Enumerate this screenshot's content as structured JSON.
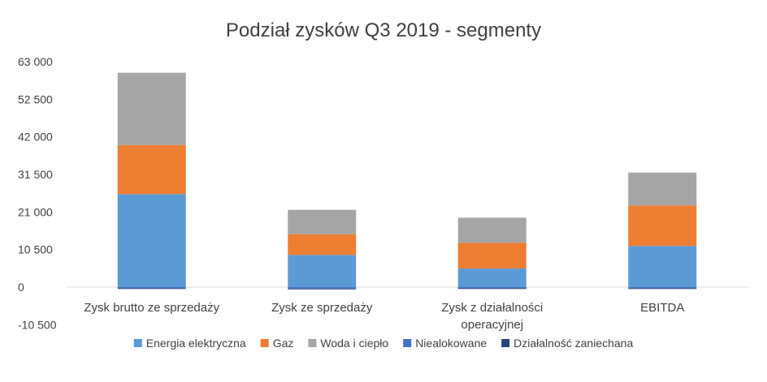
{
  "chart_data": {
    "type": "bar",
    "stacked": true,
    "title": "Podział zysków Q3 2019 - segmenty",
    "categories": [
      [
        "Zysk brutto ze sprzedaży"
      ],
      [
        "Zysk ze sprzedaży"
      ],
      [
        "Zysk z działalności",
        "operacyjnej"
      ],
      [
        "EBITDA"
      ]
    ],
    "yticks": [
      "63 000",
      "52 500",
      "42 000",
      "31 500",
      "21 000",
      "10 500",
      "0",
      "-10 500"
    ],
    "ylim": [
      -10500,
      63000
    ],
    "legend_position": "bottom",
    "series": [
      {
        "name": "Energia elektryczna",
        "color": "#5b9bd5",
        "values": [
          26000,
          9000,
          5200,
          11500
        ]
      },
      {
        "name": "Gaz",
        "color": "#ed7d31",
        "values": [
          13700,
          5800,
          7200,
          11300
        ]
      },
      {
        "name": "Woda i ciepło",
        "color": "#a5a5a5",
        "values": [
          20200,
          6800,
          7000,
          9200
        ]
      },
      {
        "name": "Niealokowane",
        "color": "#4472c4",
        "values": [
          -300,
          -400,
          -300,
          -300
        ]
      },
      {
        "name": "Działalność zaniechana",
        "color": "#264478",
        "values": [
          -100,
          -100,
          -100,
          -100
        ]
      }
    ]
  }
}
